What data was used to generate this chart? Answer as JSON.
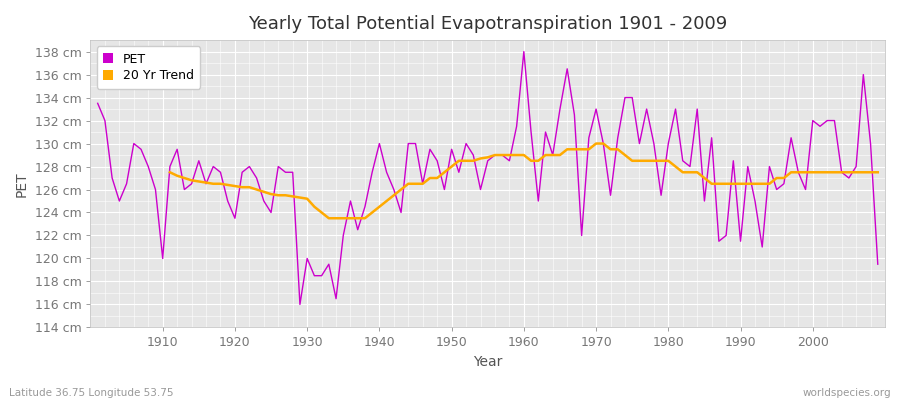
{
  "title": "Yearly Total Potential Evapotranspiration 1901 - 2009",
  "xlabel": "Year",
  "ylabel": "PET",
  "subtitle_left": "Latitude 36.75 Longitude 53.75",
  "subtitle_right": "worldspecies.org",
  "years": [
    1901,
    1902,
    1903,
    1904,
    1905,
    1906,
    1907,
    1908,
    1909,
    1910,
    1911,
    1912,
    1913,
    1914,
    1915,
    1916,
    1917,
    1918,
    1919,
    1920,
    1921,
    1922,
    1923,
    1924,
    1925,
    1926,
    1927,
    1928,
    1929,
    1930,
    1931,
    1932,
    1933,
    1934,
    1935,
    1936,
    1937,
    1938,
    1939,
    1940,
    1941,
    1942,
    1943,
    1944,
    1945,
    1946,
    1947,
    1948,
    1949,
    1950,
    1951,
    1952,
    1953,
    1954,
    1955,
    1956,
    1957,
    1958,
    1959,
    1960,
    1961,
    1962,
    1963,
    1964,
    1965,
    1966,
    1967,
    1968,
    1969,
    1970,
    1971,
    1972,
    1973,
    1974,
    1975,
    1976,
    1977,
    1978,
    1979,
    1980,
    1981,
    1982,
    1983,
    1984,
    1985,
    1986,
    1987,
    1988,
    1989,
    1990,
    1991,
    1992,
    1993,
    1994,
    1995,
    1996,
    1997,
    1998,
    1999,
    2000,
    2001,
    2002,
    2003,
    2004,
    2005,
    2006,
    2007,
    2008,
    2009
  ],
  "pet": [
    133.5,
    132.0,
    127.0,
    125.0,
    126.5,
    130.0,
    129.5,
    128.0,
    126.0,
    120.0,
    128.0,
    129.5,
    126.0,
    126.5,
    128.5,
    126.5,
    128.0,
    127.5,
    125.0,
    123.5,
    127.5,
    128.0,
    127.0,
    125.0,
    124.0,
    128.0,
    127.5,
    127.5,
    116.0,
    120.0,
    118.5,
    118.5,
    119.5,
    116.5,
    122.0,
    125.0,
    122.5,
    124.5,
    127.5,
    130.0,
    127.5,
    126.0,
    124.0,
    130.0,
    130.0,
    126.5,
    129.5,
    128.5,
    126.0,
    129.5,
    127.5,
    130.0,
    129.0,
    126.0,
    128.5,
    129.0,
    129.0,
    128.5,
    131.5,
    138.0,
    131.0,
    125.0,
    131.0,
    129.0,
    133.0,
    136.5,
    132.5,
    122.0,
    130.5,
    133.0,
    130.0,
    125.5,
    130.5,
    134.0,
    134.0,
    130.0,
    133.0,
    130.0,
    125.5,
    130.0,
    133.0,
    128.5,
    128.0,
    133.0,
    125.0,
    130.5,
    121.5,
    122.0,
    128.5,
    121.5,
    128.0,
    125.0,
    121.0,
    128.0,
    126.0,
    126.5,
    130.5,
    127.5,
    126.0,
    132.0,
    131.5,
    132.0,
    132.0,
    127.5,
    127.0,
    128.0,
    136.0,
    130.0,
    119.5
  ],
  "trend": [
    null,
    null,
    null,
    null,
    null,
    null,
    null,
    null,
    null,
    null,
    127.5,
    127.2,
    127.0,
    126.8,
    126.7,
    126.6,
    126.5,
    126.5,
    126.4,
    126.3,
    126.2,
    126.2,
    126.0,
    125.8,
    125.6,
    125.5,
    125.5,
    125.4,
    125.3,
    125.2,
    124.5,
    124.0,
    123.5,
    123.5,
    123.5,
    123.5,
    123.5,
    123.5,
    124.0,
    124.5,
    125.0,
    125.5,
    126.0,
    126.5,
    126.5,
    126.5,
    127.0,
    127.0,
    127.5,
    128.0,
    128.5,
    128.5,
    128.5,
    128.7,
    128.8,
    129.0,
    129.0,
    129.0,
    129.0,
    129.0,
    128.5,
    128.5,
    129.0,
    129.0,
    129.0,
    129.5,
    129.5,
    129.5,
    129.5,
    130.0,
    130.0,
    129.5,
    129.5,
    129.0,
    128.5,
    128.5,
    128.5,
    128.5,
    128.5,
    128.5,
    128.0,
    127.5,
    127.5,
    127.5,
    127.0,
    126.5,
    126.5,
    126.5,
    126.5,
    126.5,
    126.5,
    126.5,
    126.5,
    126.5,
    127.0,
    127.0,
    127.5,
    127.5,
    127.5,
    127.5,
    127.5,
    127.5,
    127.5,
    127.5,
    127.5,
    127.5,
    127.5,
    127.5,
    127.5
  ],
  "pet_color": "#cc00cc",
  "trend_color": "#ffaa00",
  "bg_color": "#ffffff",
  "plot_bg_color": "#e6e6e6",
  "grid_color": "#ffffff",
  "ylim": [
    114,
    139
  ],
  "yticks": [
    114,
    116,
    118,
    120,
    122,
    124,
    126,
    128,
    130,
    132,
    134,
    136,
    138
  ],
  "xticks": [
    1910,
    1920,
    1930,
    1940,
    1950,
    1960,
    1970,
    1980,
    1990,
    2000
  ],
  "title_fontsize": 13,
  "label_fontsize": 10,
  "tick_fontsize": 9,
  "xlim_left": 1900,
  "xlim_right": 2010
}
